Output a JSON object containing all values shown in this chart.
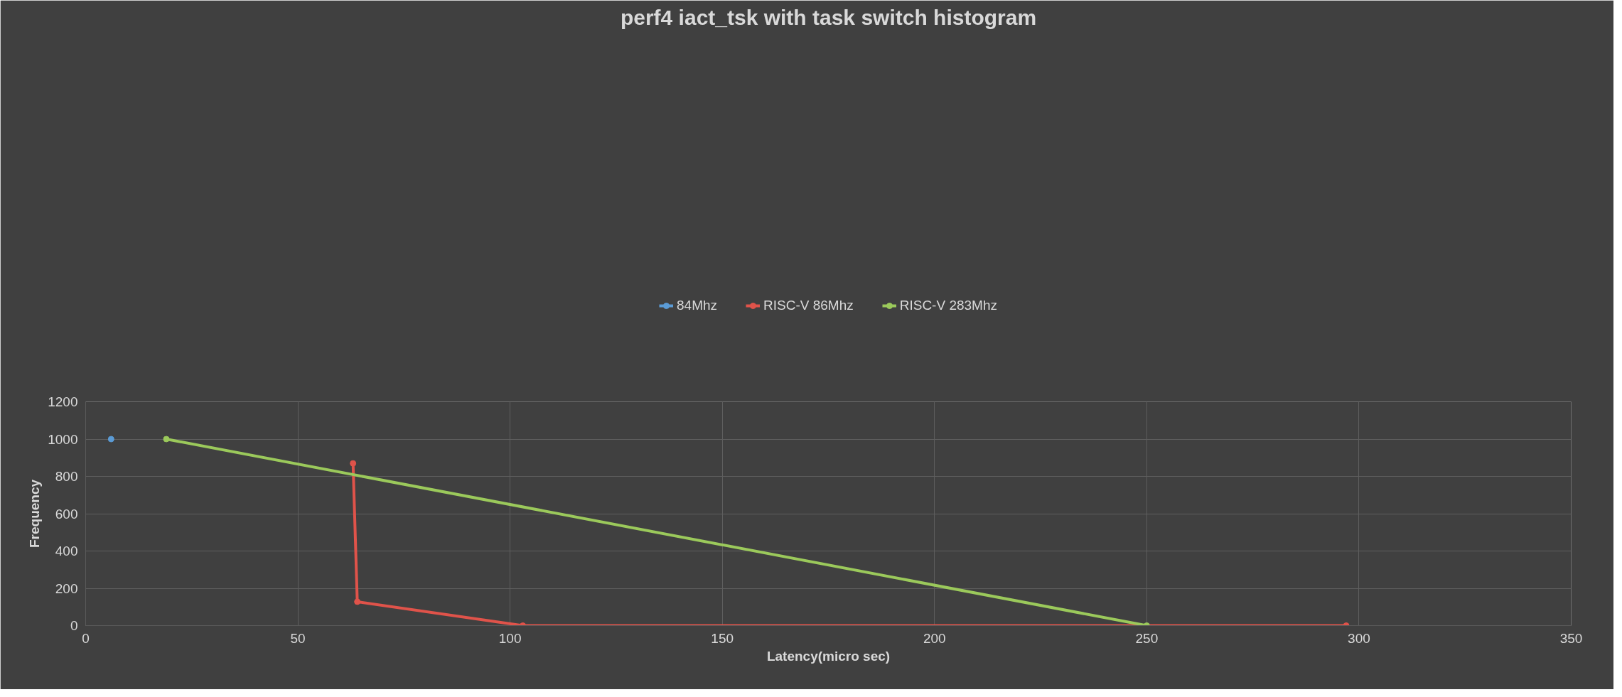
{
  "chart_data": {
    "type": "line",
    "title": "perf4 iact_tsk with task switch histogram",
    "xlabel": "Latency(micro sec)",
    "ylabel": "Frequency",
    "xlim": [
      0,
      350
    ],
    "xticks": [
      0,
      50,
      100,
      150,
      200,
      250,
      300,
      350
    ],
    "ylim": [
      0,
      1200
    ],
    "yticks": [
      0,
      200,
      400,
      600,
      800,
      1000,
      1200
    ],
    "grid": true,
    "legend": "top",
    "marker": "circle",
    "line_style": "solid",
    "series": [
      {
        "name": "84Mhz",
        "color": "#5b9bd5",
        "x": [
          6
        ],
        "values": [
          1000
        ]
      },
      {
        "name": "RISC-V 86Mhz",
        "color": "#e0534a",
        "x": [
          63,
          64,
          103,
          297
        ],
        "values": [
          870,
          128,
          0,
          0
        ]
      },
      {
        "name": "RISC-V 283Mhz",
        "color": "#9bc95b",
        "x": [
          19,
          250
        ],
        "values": [
          1000,
          0
        ]
      }
    ]
  }
}
